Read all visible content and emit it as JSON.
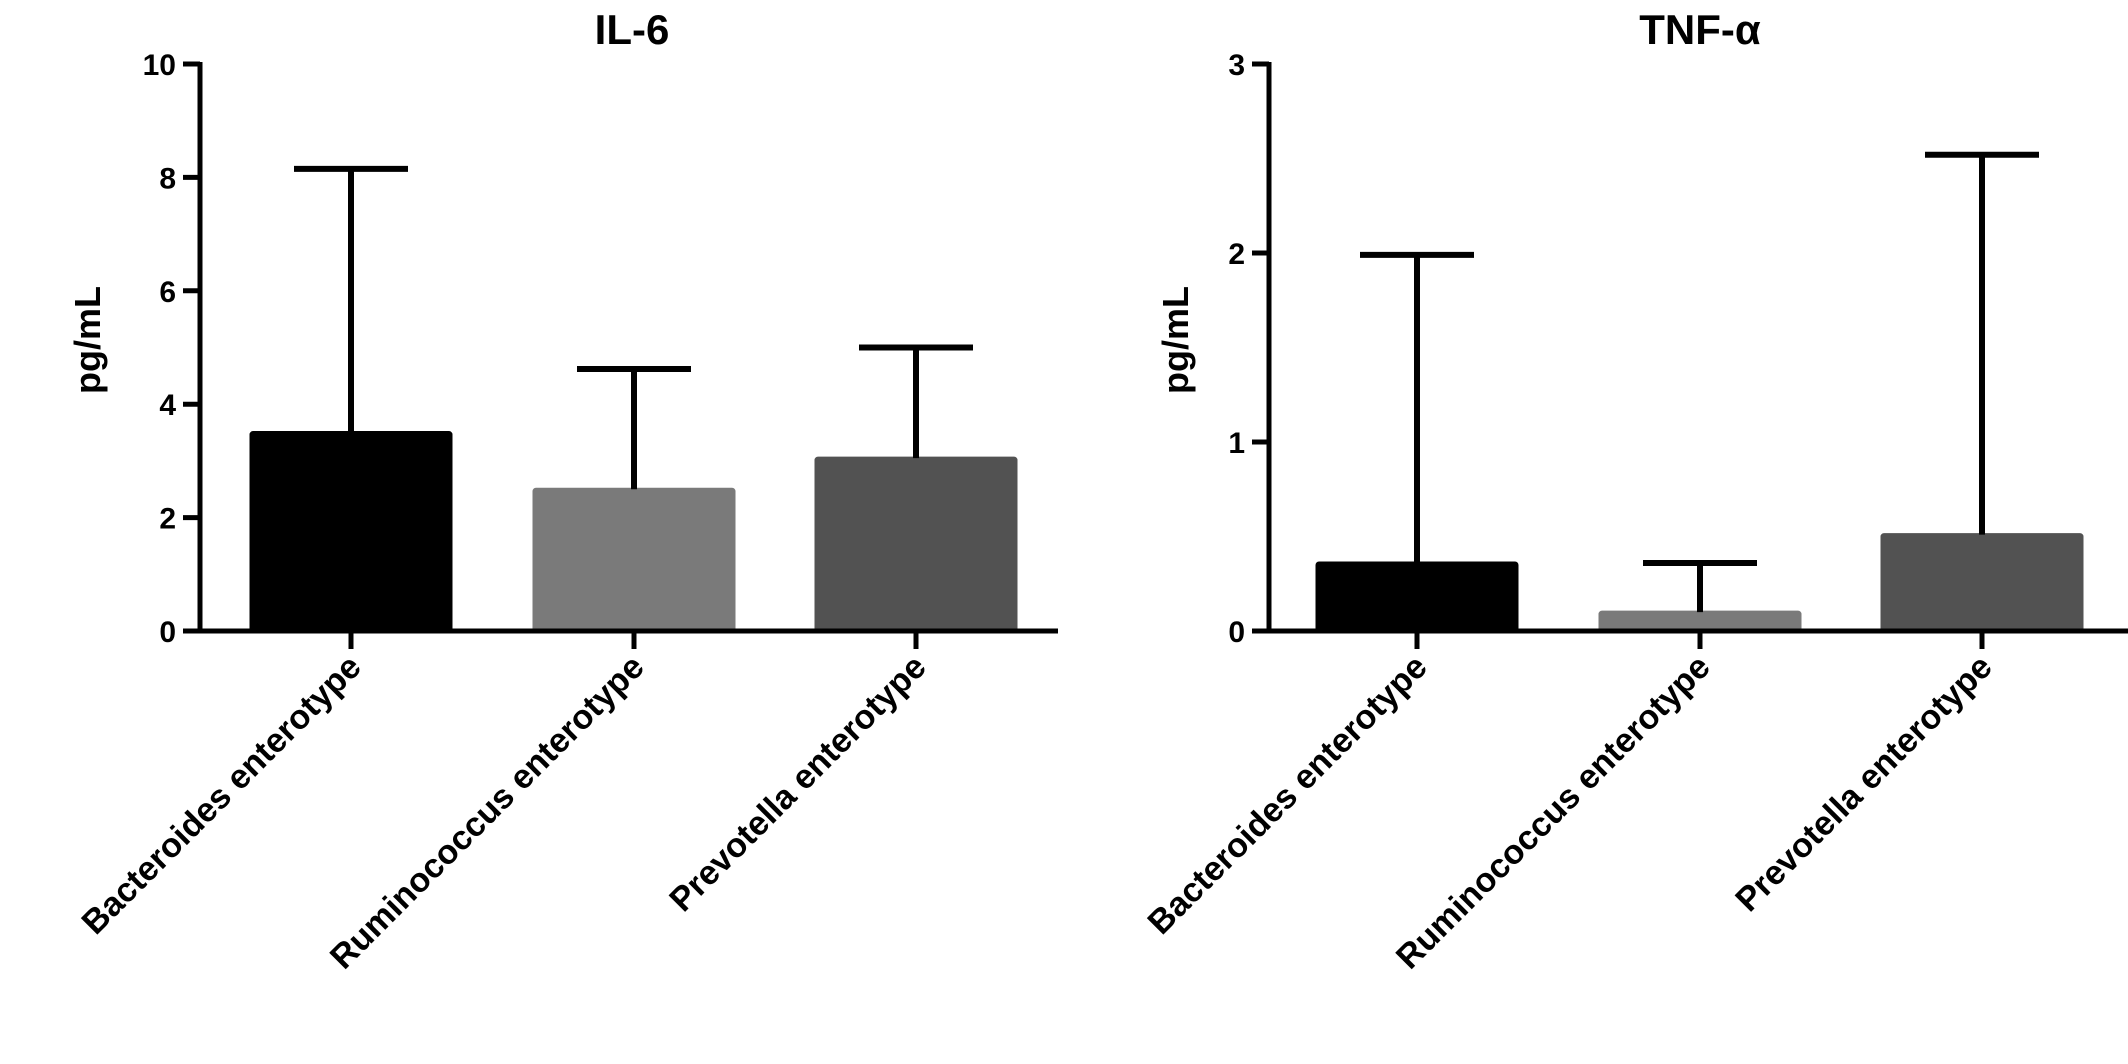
{
  "chart_data": [
    {
      "type": "bar",
      "title": "IL-6",
      "ylabel": "pg/mL",
      "xlabel": "",
      "ylim": [
        0,
        10
      ],
      "yticks": [
        "0",
        "2",
        "4",
        "6",
        "8",
        "10"
      ],
      "categories": [
        "Bacteroides enterotype",
        "Ruminococcus enterotype",
        "Prevotella enterotype"
      ],
      "values": [
        3.5,
        2.5,
        3.05
      ],
      "error_upper": [
        8.15,
        4.62,
        5.0
      ],
      "colors": [
        "#000000",
        "#7a7a7a",
        "#525252"
      ],
      "grid": false,
      "legend": "none"
    },
    {
      "type": "bar",
      "title": "TNF-α",
      "ylabel": "pg/mL",
      "xlabel": "",
      "ylim": [
        0,
        3
      ],
      "yticks": [
        "0",
        "1",
        "2",
        "3"
      ],
      "categories": [
        "Bacteroides enterotype",
        "Ruminococcus enterotype",
        "Prevotella enterotype"
      ],
      "values": [
        0.36,
        0.1,
        0.51
      ],
      "error_upper": [
        1.99,
        0.36,
        2.52
      ],
      "colors": [
        "#000000",
        "#7a7a7a",
        "#525252"
      ],
      "grid": false,
      "legend": "none"
    }
  ]
}
